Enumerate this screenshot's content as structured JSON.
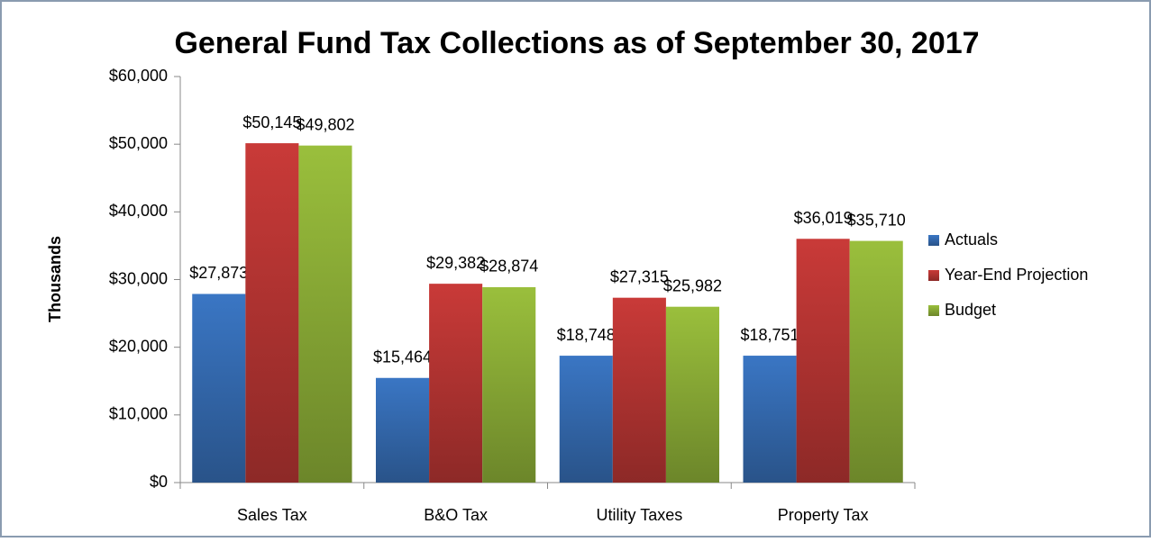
{
  "chart_data": {
    "type": "bar",
    "title": "General Fund Tax Collections as of September 30, 2017",
    "y_label": "Thousands",
    "categories": [
      "Sales Tax",
      "B&O Tax",
      "Utility Taxes",
      "Property Tax"
    ],
    "series": [
      {
        "name": "Actuals",
        "color": "#3a76c4",
        "values": [
          27873,
          15464,
          18748,
          18751
        ],
        "value_labels": [
          "$27,873",
          "$15,464",
          "$18,748",
          "$18,751"
        ]
      },
      {
        "name": "Year-End Projection",
        "color": "#c93a38",
        "values": [
          50145,
          29382,
          27315,
          36019
        ],
        "value_labels": [
          "$50,145",
          "$29,382",
          "$27,315",
          "$36,019"
        ]
      },
      {
        "name": "Budget",
        "color": "#9abf3c",
        "values": [
          49802,
          28874,
          25982,
          35710
        ],
        "value_labels": [
          "$49,802",
          "$28,874",
          "$25,982",
          "$35,710"
        ]
      }
    ],
    "ylim": [
      0,
      60000
    ],
    "yticks": [
      {
        "value": 0,
        "label": "$0"
      },
      {
        "value": 10000,
        "label": "$10,000"
      },
      {
        "value": 20000,
        "label": "$20,000"
      },
      {
        "value": 30000,
        "label": "$30,000"
      },
      {
        "value": 40000,
        "label": "$40,000"
      },
      {
        "value": 50000,
        "label": "$50,000"
      },
      {
        "value": 60000,
        "label": "$60,000"
      }
    ],
    "legend": "right"
  }
}
